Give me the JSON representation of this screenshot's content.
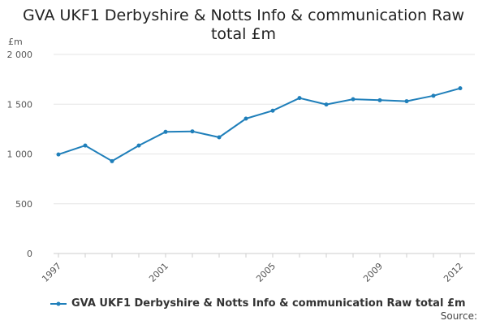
{
  "chart_data": {
    "type": "line",
    "title_lines": [
      "GVA UKF1 Derbyshire & Notts Info & communication Raw",
      "total £m"
    ],
    "ylabel": "£m",
    "xlabel": "",
    "y_ticks": [
      0,
      500,
      1000,
      1500,
      2000
    ],
    "y_tick_labels": [
      "0",
      "500",
      "1 000",
      "1 500",
      "2 000"
    ],
    "ylim": [
      0,
      2000
    ],
    "x_ticks": [
      1997,
      2001,
      2005,
      2009,
      2012
    ],
    "x_tick_labels": [
      "1997",
      "2001",
      "2005",
      "2009",
      "2012"
    ],
    "xlim": [
      1997,
      2012
    ],
    "grid": true,
    "legend_position": "bottom-left",
    "series": [
      {
        "name": "GVA UKF1 Derbyshire & Notts Info & communication Raw total £m",
        "color": "#1f7fba",
        "x": [
          1997,
          1998,
          1999,
          2000,
          2001,
          2002,
          2003,
          2004,
          2005,
          2006,
          2007,
          2008,
          2009,
          2010,
          2011,
          2012
        ],
        "y": [
          995,
          1085,
          928,
          1085,
          1222,
          1227,
          1167,
          1355,
          1435,
          1562,
          1497,
          1550,
          1540,
          1530,
          1585,
          1660
        ]
      }
    ]
  },
  "source_label": "Source:"
}
